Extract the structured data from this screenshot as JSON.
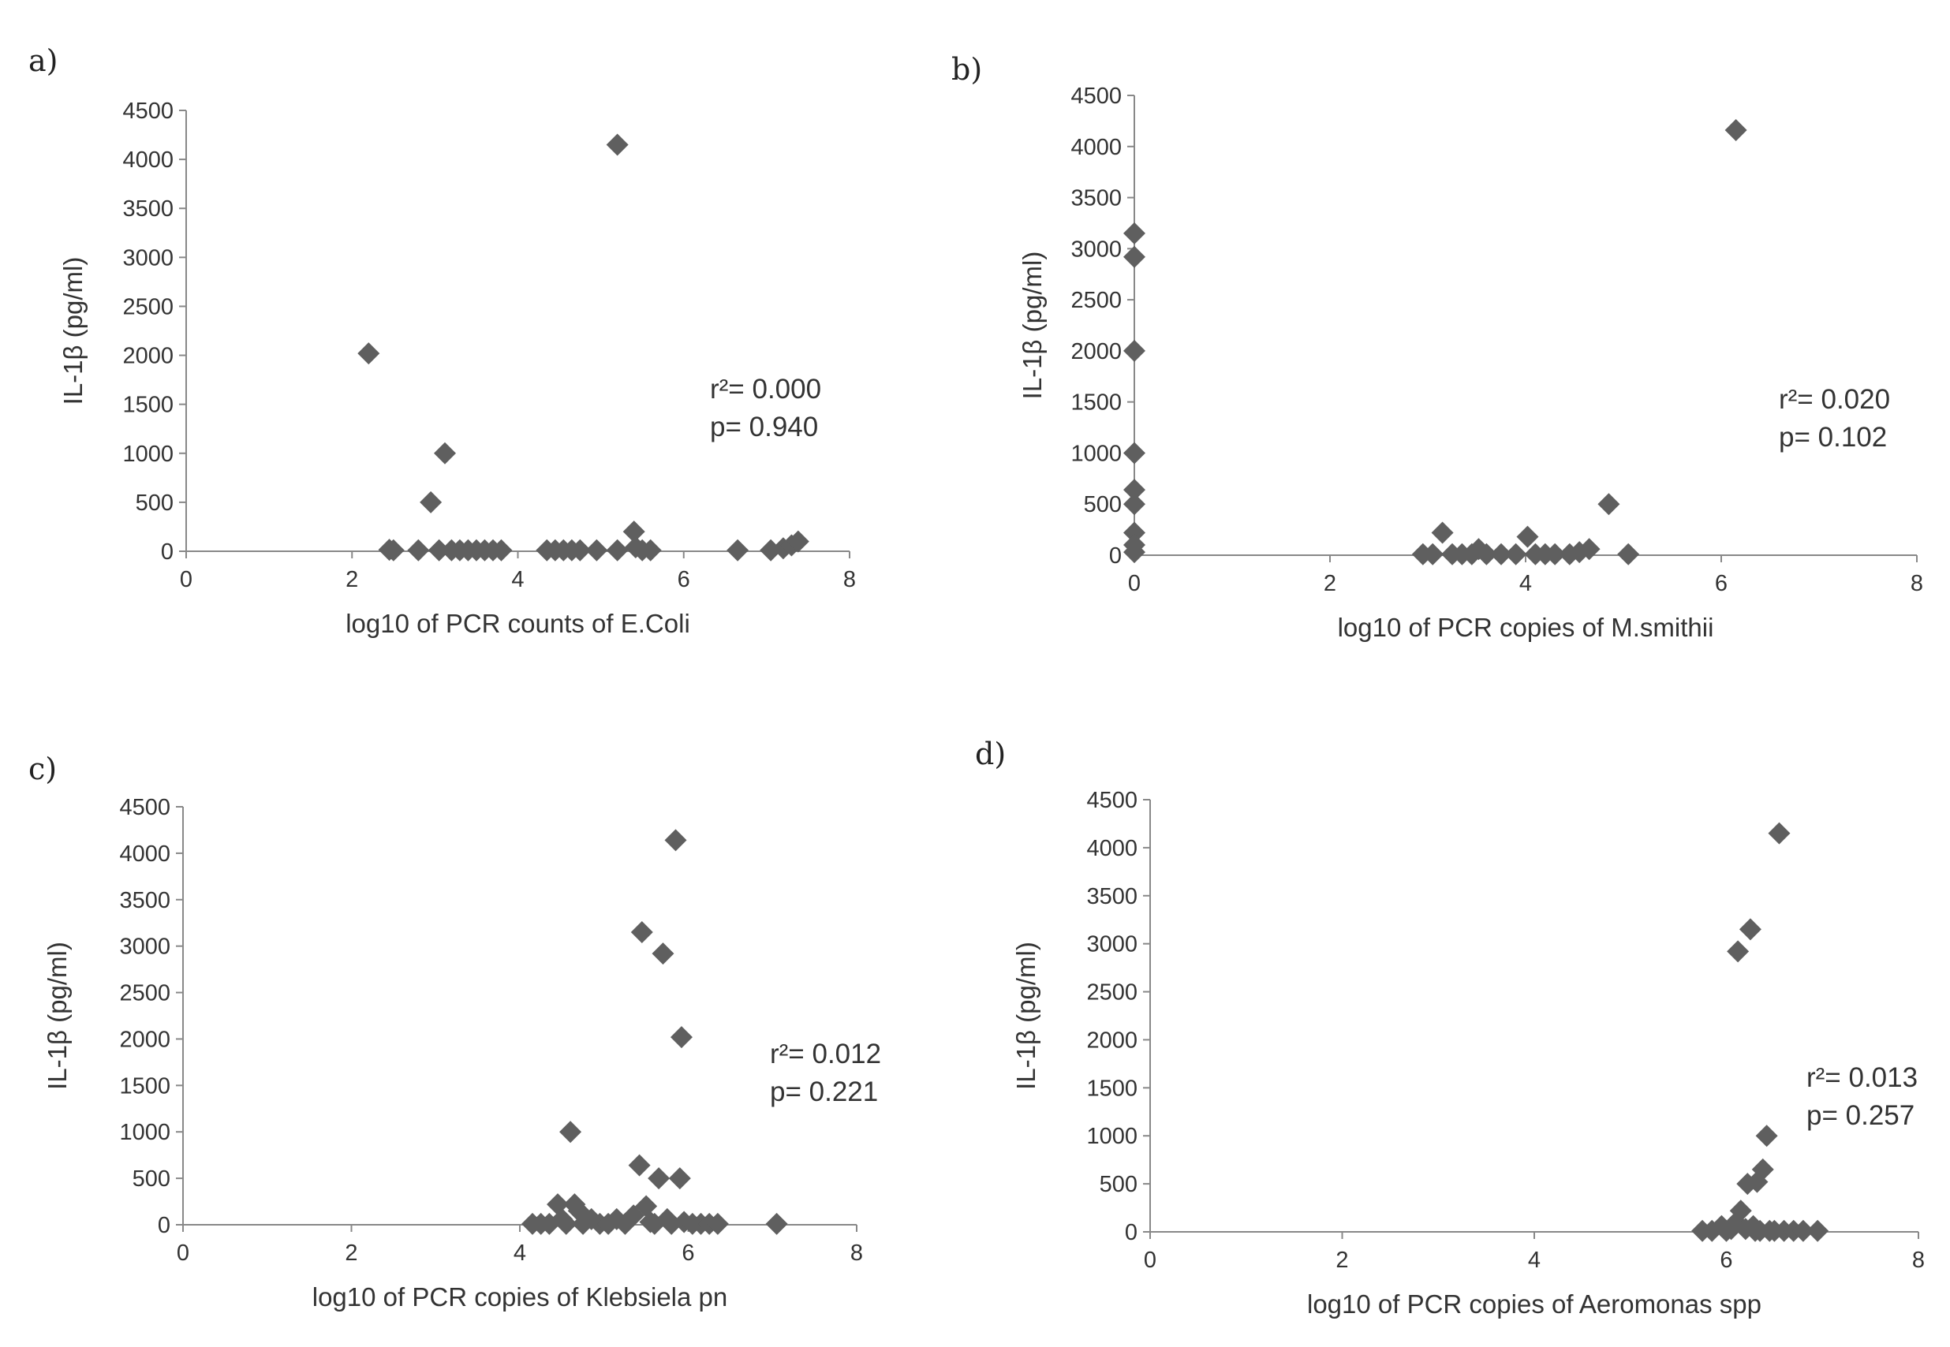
{
  "colors": {
    "marker": "#5f5f5f",
    "axis": "#888888",
    "text": "#333333"
  },
  "chart_data": [
    {
      "panel": "a)",
      "type": "scatter",
      "xlabel": "log10 of PCR counts of E.Coli",
      "ylabel": "IL-1β  (pg/ml)",
      "xlim": [
        0,
        8
      ],
      "ylim": [
        0,
        4500
      ],
      "xticks": [
        0,
        2,
        4,
        6,
        8
      ],
      "yticks": [
        0,
        500,
        1000,
        1500,
        2000,
        2500,
        3000,
        3500,
        4000,
        4500
      ],
      "marker": "diamond",
      "annotation": [
        "r²= 0.000",
        "p= 0.940"
      ],
      "points": [
        [
          2.2,
          2020
        ],
        [
          2.45,
          15
        ],
        [
          2.5,
          10
        ],
        [
          2.8,
          10
        ],
        [
          2.95,
          500
        ],
        [
          3.05,
          10
        ],
        [
          3.12,
          1000
        ],
        [
          3.2,
          10
        ],
        [
          3.3,
          10
        ],
        [
          3.4,
          10
        ],
        [
          3.5,
          10
        ],
        [
          3.6,
          10
        ],
        [
          3.7,
          10
        ],
        [
          3.8,
          10
        ],
        [
          4.35,
          10
        ],
        [
          4.45,
          10
        ],
        [
          4.55,
          10
        ],
        [
          4.65,
          10
        ],
        [
          4.75,
          10
        ],
        [
          4.95,
          10
        ],
        [
          5.2,
          4150
        ],
        [
          5.2,
          10
        ],
        [
          5.4,
          200
        ],
        [
          5.42,
          40
        ],
        [
          5.5,
          10
        ],
        [
          5.6,
          10
        ],
        [
          6.65,
          10
        ],
        [
          7.05,
          10
        ],
        [
          7.2,
          30
        ],
        [
          7.3,
          60
        ],
        [
          7.38,
          100
        ]
      ]
    },
    {
      "panel": "b)",
      "type": "scatter",
      "xlabel": "log10 of PCR copies of M.smithii",
      "ylabel": "IL-1β  (pg/ml)",
      "xlim": [
        0,
        8
      ],
      "ylim": [
        0,
        4500
      ],
      "xticks": [
        0,
        2,
        4,
        6,
        8
      ],
      "yticks": [
        0,
        500,
        1000,
        1500,
        2000,
        2500,
        3000,
        3500,
        4000,
        4500
      ],
      "marker": "diamond",
      "annotation": [
        "r²= 0.020",
        "p= 0.102"
      ],
      "points": [
        [
          0,
          3150
        ],
        [
          0,
          2920
        ],
        [
          0,
          2000
        ],
        [
          0,
          1000
        ],
        [
          0,
          640
        ],
        [
          0,
          500
        ],
        [
          0,
          220
        ],
        [
          0,
          100
        ],
        [
          0,
          30
        ],
        [
          2.95,
          10
        ],
        [
          3.05,
          10
        ],
        [
          3.15,
          220
        ],
        [
          3.25,
          10
        ],
        [
          3.35,
          10
        ],
        [
          3.45,
          10
        ],
        [
          3.52,
          60
        ],
        [
          3.6,
          10
        ],
        [
          3.75,
          10
        ],
        [
          3.9,
          10
        ],
        [
          4.02,
          180
        ],
        [
          4.1,
          10
        ],
        [
          4.2,
          10
        ],
        [
          4.3,
          10
        ],
        [
          4.45,
          10
        ],
        [
          4.55,
          30
        ],
        [
          4.65,
          60
        ],
        [
          4.85,
          500
        ],
        [
          5.05,
          10
        ],
        [
          6.15,
          4160
        ]
      ]
    },
    {
      "panel": "c)",
      "type": "scatter",
      "xlabel": "log10 of PCR copies of Klebsiela pn",
      "ylabel": "IL-1β  (pg/ml)",
      "xlim": [
        0,
        8
      ],
      "ylim": [
        0,
        4500
      ],
      "xticks": [
        0,
        2,
        4,
        6,
        8
      ],
      "yticks": [
        0,
        500,
        1000,
        1500,
        2000,
        2500,
        3000,
        3500,
        4000,
        4500
      ],
      "marker": "diamond",
      "annotation": [
        "r²= 0.012",
        "p= 0.221"
      ],
      "points": [
        [
          4.15,
          10
        ],
        [
          4.25,
          10
        ],
        [
          4.35,
          10
        ],
        [
          4.45,
          220
        ],
        [
          4.5,
          60
        ],
        [
          4.55,
          10
        ],
        [
          4.6,
          1000
        ],
        [
          4.65,
          220
        ],
        [
          4.7,
          150
        ],
        [
          4.75,
          10
        ],
        [
          4.85,
          60
        ],
        [
          4.95,
          10
        ],
        [
          5.05,
          10
        ],
        [
          5.15,
          60
        ],
        [
          5.25,
          10
        ],
        [
          5.35,
          100
        ],
        [
          5.42,
          640
        ],
        [
          5.45,
          3150
        ],
        [
          5.5,
          200
        ],
        [
          5.55,
          30
        ],
        [
          5.6,
          10
        ],
        [
          5.65,
          500
        ],
        [
          5.7,
          2920
        ],
        [
          5.75,
          60
        ],
        [
          5.8,
          10
        ],
        [
          5.85,
          4140
        ],
        [
          5.9,
          500
        ],
        [
          5.92,
          2020
        ],
        [
          5.95,
          30
        ],
        [
          6.05,
          10
        ],
        [
          6.15,
          10
        ],
        [
          6.25,
          10
        ],
        [
          6.35,
          10
        ],
        [
          7.05,
          10
        ]
      ]
    },
    {
      "panel": "d)",
      "type": "scatter",
      "xlabel": "log10 of PCR copies of Aeromonas spp",
      "ylabel": "IL-1β  (pg/ml)",
      "xlim": [
        0,
        8
      ],
      "ylim": [
        0,
        4500
      ],
      "xticks": [
        0,
        2,
        4,
        6,
        8
      ],
      "yticks": [
        0,
        500,
        1000,
        1500,
        2000,
        2500,
        3000,
        3500,
        4000,
        4500
      ],
      "marker": "diamond",
      "annotation": [
        "r²= 0.013",
        "p= 0.257"
      ],
      "points": [
        [
          5.75,
          10
        ],
        [
          5.85,
          10
        ],
        [
          5.95,
          60
        ],
        [
          6.0,
          10
        ],
        [
          6.05,
          30
        ],
        [
          6.1,
          100
        ],
        [
          6.12,
          2920
        ],
        [
          6.15,
          220
        ],
        [
          6.2,
          30
        ],
        [
          6.22,
          500
        ],
        [
          6.25,
          3150
        ],
        [
          6.28,
          60
        ],
        [
          6.3,
          10
        ],
        [
          6.32,
          520
        ],
        [
          6.35,
          10
        ],
        [
          6.38,
          650
        ],
        [
          6.42,
          1000
        ],
        [
          6.45,
          10
        ],
        [
          6.5,
          10
        ],
        [
          6.55,
          4150
        ],
        [
          6.6,
          10
        ],
        [
          6.7,
          10
        ],
        [
          6.8,
          10
        ],
        [
          6.95,
          10
        ]
      ]
    }
  ]
}
